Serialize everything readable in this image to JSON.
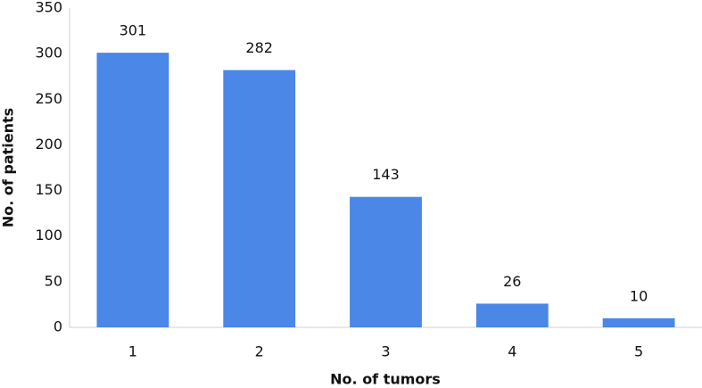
{
  "chart_data": {
    "type": "bar",
    "x_label": "No. of tumors",
    "y_label": "No. of patients",
    "categories": [
      "1",
      "2",
      "3",
      "4",
      "5"
    ],
    "values": [
      301,
      282,
      143,
      26,
      10
    ],
    "color": "#4a87e6",
    "ylim": [
      0,
      350
    ],
    "yticks": [
      0,
      50,
      100,
      150,
      200,
      250,
      300,
      350
    ],
    "grid": false
  }
}
